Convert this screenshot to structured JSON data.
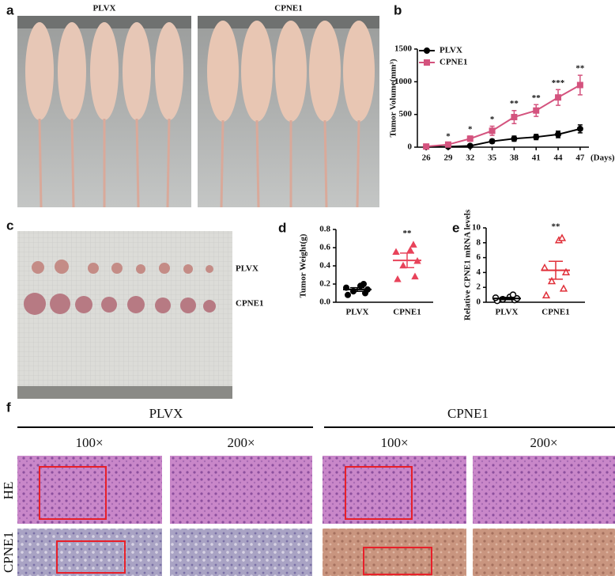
{
  "figure": {
    "panel_a": {
      "letter": "a",
      "labels": [
        "PLVX",
        "CPNE1"
      ]
    },
    "panel_c": {
      "letter": "c",
      "labels": [
        "PLVX",
        "CPNE1"
      ]
    },
    "panel_f": {
      "letter": "f",
      "groups": [
        "PLVX",
        "CPNE1"
      ],
      "magnifications": [
        "100×",
        "200×",
        "100×",
        "200×"
      ],
      "rows": [
        "HE",
        "CPNE1"
      ]
    }
  },
  "chart_data": [
    {
      "type": "line",
      "panel": "b",
      "y_label": "Tumor Volume(mm³)",
      "x_label": "(Days)",
      "x": [
        26,
        29,
        32,
        35,
        38,
        41,
        44,
        47
      ],
      "xlim": [
        24.8,
        48.2
      ],
      "xticks": [
        26,
        29,
        32,
        35,
        38,
        41,
        44,
        47
      ],
      "ylim": [
        0,
        1500
      ],
      "yticks": [
        0,
        500,
        1000,
        1500
      ],
      "series": [
        {
          "name": "PLVX",
          "color": "#000000",
          "marker": "circle",
          "values": [
            5,
            8,
            20,
            90,
            130,
            155,
            195,
            280
          ],
          "errors": [
            3,
            5,
            10,
            30,
            40,
            40,
            50,
            60
          ]
        },
        {
          "name": "CPNE1",
          "color": "#d4537e",
          "marker": "square",
          "values": [
            10,
            40,
            130,
            250,
            460,
            560,
            760,
            950
          ],
          "errors": [
            8,
            20,
            40,
            70,
            100,
            90,
            120,
            150
          ]
        }
      ],
      "annotations": [
        {
          "x": 29,
          "text": "*"
        },
        {
          "x": 32,
          "text": "*"
        },
        {
          "x": 35,
          "text": "*"
        },
        {
          "x": 38,
          "text": "**"
        },
        {
          "x": 41,
          "text": "**"
        },
        {
          "x": 44,
          "text": "***"
        },
        {
          "x": 47,
          "text": "**"
        }
      ]
    },
    {
      "type": "dotplot",
      "panel": "d",
      "y_label": "Tumor Weight(g)",
      "ylim": [
        0,
        0.8
      ],
      "yticks": [
        {
          "value": 0,
          "label": "0.0"
        },
        0.2,
        0.4,
        0.6,
        0.8
      ],
      "groups": [
        {
          "name": "PLVX",
          "color": "#000000",
          "marker": "circle",
          "filled": true,
          "values": [
            0.08,
            0.1,
            0.12,
            0.14,
            0.16,
            0.18,
            0.2
          ],
          "mean": 0.14,
          "sem": 0.02
        },
        {
          "name": "CPNE1",
          "color": "#e8435a",
          "marker": "triangle",
          "filled": true,
          "values": [
            0.25,
            0.28,
            0.4,
            0.45,
            0.55,
            0.57,
            0.63
          ],
          "mean": 0.46,
          "sem": 0.08,
          "significance": "**"
        }
      ]
    },
    {
      "type": "dotplot",
      "panel": "e",
      "y_label": "Relative CPNE1 mRNA levels",
      "ylim": [
        0,
        10
      ],
      "yticks": [
        0,
        2,
        4,
        6,
        8,
        10
      ],
      "groups": [
        {
          "name": "PLVX",
          "color": "#000000",
          "marker": "circle",
          "filled": false,
          "values": [
            0.2,
            0.3,
            0.4,
            0.5,
            0.6,
            0.7,
            1.0
          ],
          "mean": 0.5,
          "sem": 0.15
        },
        {
          "name": "CPNE1",
          "color": "#e0303a",
          "marker": "triangle",
          "filled": false,
          "values": [
            0.9,
            1.8,
            2.8,
            4.0,
            4.6,
            8.3,
            8.6
          ],
          "mean": 4.3,
          "sem": 1.2,
          "significance": "**"
        }
      ]
    }
  ]
}
